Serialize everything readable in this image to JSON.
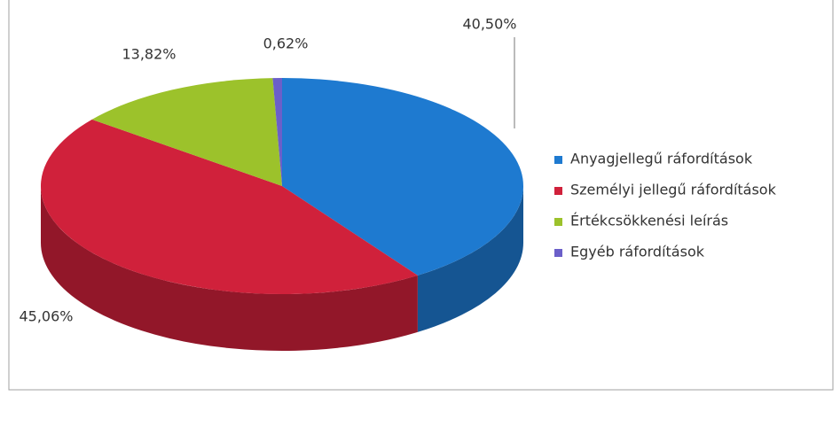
{
  "chart_data": {
    "type": "pie",
    "categories": [
      "Anyagjellegű ráfordítások",
      "Személyi jellegű ráfordítások",
      "Értékcsökkenési leírás",
      "Egyéb ráfordítások"
    ],
    "values": [
      40.5,
      45.06,
      13.82,
      0.62
    ],
    "value_labels": [
      "40,50%",
      "45,06%",
      "13,82%",
      "0,62%"
    ],
    "colors": [
      "#1e7ad0",
      "#d0213b",
      "#9cc22b",
      "#6b5fc9"
    ],
    "legend": "right"
  }
}
